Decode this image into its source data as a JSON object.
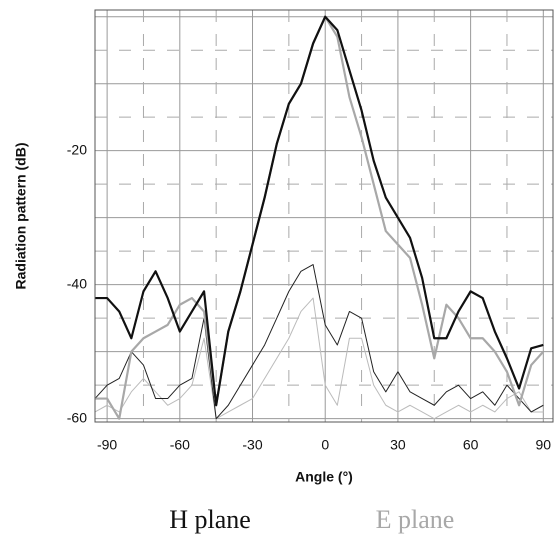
{
  "chart_data": {
    "type": "line",
    "y_label": "Radiation pattern (dB)",
    "x_label": "Angle (°)",
    "x": [
      -95,
      -90,
      -85,
      -80,
      -75,
      -70,
      -65,
      -60,
      -55,
      -50,
      -45,
      -40,
      -35,
      -30,
      -25,
      -20,
      -15,
      -10,
      -5,
      0,
      5,
      10,
      15,
      20,
      25,
      30,
      35,
      40,
      45,
      50,
      55,
      60,
      65,
      70,
      75,
      80,
      85,
      90
    ],
    "series": [
      {
        "name": "H plane",
        "color": "#111111",
        "width": 2.2,
        "values": [
          -42,
          -42,
          -44,
          -48,
          -41,
          -38,
          -42,
          -47,
          -44,
          -41,
          -58,
          -47,
          -41,
          -34,
          -27,
          -19,
          -13,
          -10,
          -4,
          0,
          -2,
          -8,
          -14,
          -21.5,
          -27,
          -30,
          -33,
          -39,
          -48,
          -48,
          -44,
          -41,
          -42,
          -47,
          -51,
          -55.5,
          -49.5,
          -49
        ]
      },
      {
        "name": "E plane",
        "color": "#a8a8a8",
        "width": 2.2,
        "values": [
          -57,
          -57,
          -60,
          -50,
          -48,
          -47,
          -46,
          -43,
          -42,
          -44,
          -58,
          -47,
          -41,
          -34,
          -27,
          -19,
          -13,
          -10,
          -4,
          0,
          -3,
          -12,
          -18,
          -25,
          -32,
          -34,
          -36,
          -43,
          -51,
          -43,
          -45,
          -48,
          -48,
          -50,
          -53,
          -58,
          -52,
          -50
        ]
      },
      {
        "color": "#222222",
        "width": 1,
        "values": [
          -57,
          -55,
          -54,
          -50,
          -52,
          -57,
          -57,
          -55,
          -54,
          -45,
          -60,
          -58,
          -55,
          -52,
          -49,
          -45,
          -41,
          -38,
          -37,
          -46,
          -49,
          -44,
          -45,
          -53,
          -56,
          -53,
          -56,
          -57,
          -58,
          -56,
          -55,
          -57,
          -56,
          -58,
          -55,
          -57,
          -59,
          -58
        ]
      },
      {
        "color": "#bbbbbb",
        "width": 1,
        "values": [
          -59,
          -58,
          -59,
          -56,
          -54,
          -56,
          -58,
          -57,
          -55,
          -48,
          -60,
          -59,
          -58,
          -57,
          -54,
          -51,
          -48,
          -44,
          -42,
          -55,
          -58,
          -48,
          -48,
          -55,
          -58,
          -59,
          -58,
          -59,
          -60,
          -59,
          -58,
          -59,
          -58,
          -59,
          -57,
          -56,
          -59,
          -59
        ]
      }
    ],
    "xlim": [
      -95,
      94
    ],
    "ylim": [
      -60.5,
      1
    ],
    "xticks": [
      -90,
      -60,
      -30,
      0,
      30,
      60,
      90
    ],
    "yticks": [
      -60,
      -40,
      -20
    ],
    "xgrid": [
      -90,
      -60,
      -30,
      0,
      30,
      60,
      90
    ],
    "xgrid_minor": [
      -75,
      -45,
      -15,
      15,
      45,
      75
    ],
    "ygrid": [
      -60,
      -50,
      -40,
      -30,
      -20,
      -10,
      0
    ],
    "ygrid_minor": [
      -55,
      -45,
      -35,
      -25,
      -15,
      -5
    ]
  }
}
